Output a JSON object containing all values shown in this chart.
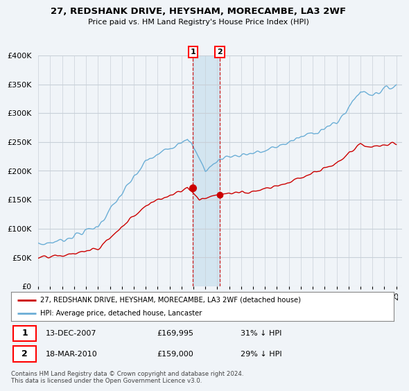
{
  "title": "27, REDSHANK DRIVE, HEYSHAM, MORECAMBE, LA3 2WF",
  "subtitle": "Price paid vs. HM Land Registry's House Price Index (HPI)",
  "ylim": [
    0,
    400000
  ],
  "yticks": [
    0,
    50000,
    100000,
    150000,
    200000,
    250000,
    300000,
    350000,
    400000
  ],
  "ytick_labels": [
    "£0",
    "£50K",
    "£100K",
    "£150K",
    "£200K",
    "£250K",
    "£300K",
    "£350K",
    "£400K"
  ],
  "hpi_color": "#6baed6",
  "price_color": "#cc0000",
  "sale1_date": 2007.96,
  "sale1_price": 169995,
  "sale2_date": 2010.21,
  "sale2_price": 159000,
  "legend_label_price": "27, REDSHANK DRIVE, HEYSHAM, MORECAMBE, LA3 2WF (detached house)",
  "legend_label_hpi": "HPI: Average price, detached house, Lancaster",
  "footnote": "Contains HM Land Registry data © Crown copyright and database right 2024.\nThis data is licensed under the Open Government Licence v3.0.",
  "background_color": "#f0f4f8",
  "plot_bg_color": "#f0f4f8",
  "grid_color": "#c8d0d8",
  "shade_color": "#d0e4f0"
}
